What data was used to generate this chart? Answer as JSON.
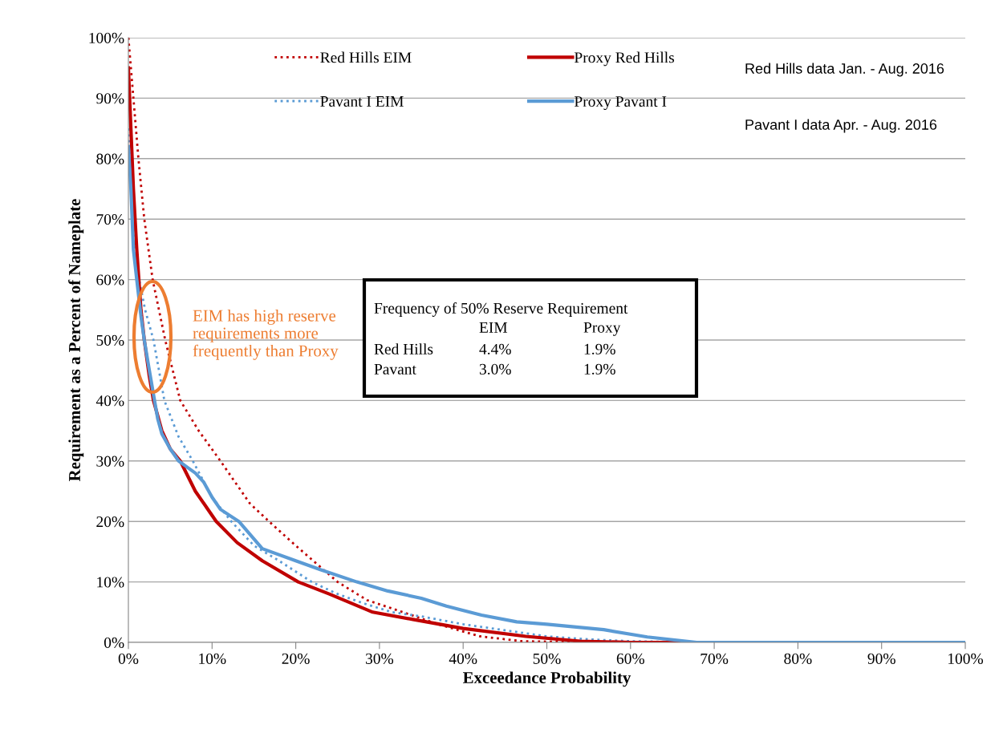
{
  "chart_data": {
    "type": "line",
    "xlabel": "Exceedance Probability",
    "ylabel": "Requirement as a Percent of Nameplate",
    "xlim": [
      0,
      100
    ],
    "ylim": [
      0,
      100
    ],
    "xticks": [
      {
        "value": 0,
        "label": "0%"
      },
      {
        "value": 10,
        "label": "10%"
      },
      {
        "value": 20,
        "label": "20%"
      },
      {
        "value": 30,
        "label": "30%"
      },
      {
        "value": 40,
        "label": "40%"
      },
      {
        "value": 50,
        "label": "50%"
      },
      {
        "value": 60,
        "label": "60%"
      },
      {
        "value": 70,
        "label": "70%"
      },
      {
        "value": 80,
        "label": "80%"
      },
      {
        "value": 90,
        "label": "90%"
      },
      {
        "value": 100,
        "label": "100%"
      }
    ],
    "yticks": [
      {
        "value": 0,
        "label": "0%"
      },
      {
        "value": 10,
        "label": "10%"
      },
      {
        "value": 20,
        "label": "20%"
      },
      {
        "value": 30,
        "label": "30%"
      },
      {
        "value": 40,
        "label": "40%"
      },
      {
        "value": 50,
        "label": "50%"
      },
      {
        "value": 60,
        "label": "60%"
      },
      {
        "value": 70,
        "label": "70%"
      },
      {
        "value": 80,
        "label": "80%"
      },
      {
        "value": 90,
        "label": "90%"
      },
      {
        "value": 100,
        "label": "100%"
      }
    ],
    "grid": "y",
    "legend": "top",
    "marker": "none",
    "series": [
      {
        "name": "Red Hills EIM",
        "color": "#c00000",
        "line_style": "dotted",
        "x": [
          0,
          0.3,
          0.6,
          1.2,
          1.9,
          2.9,
          4.4,
          6.2,
          8.4,
          11,
          12.5,
          14.5,
          16.8,
          20,
          25,
          28.5,
          32.8,
          37,
          42,
          47,
          55,
          100
        ],
        "values": [
          100,
          95,
          90,
          80,
          70,
          60,
          50,
          40,
          35,
          30,
          27,
          23,
          20,
          16,
          10,
          7,
          5,
          3,
          1,
          0.2,
          0,
          0
        ]
      },
      {
        "name": "Pavant I EIM",
        "color": "#5b9bd5",
        "line_style": "dotted",
        "x": [
          0,
          0.5,
          1,
          2,
          3,
          4.3,
          6,
          7.7,
          10,
          12.3,
          15,
          18,
          21.9,
          25,
          28,
          31.5,
          35,
          40,
          45,
          50,
          55,
          60,
          68,
          100
        ],
        "values": [
          85,
          70,
          62,
          55,
          50,
          40,
          34,
          30,
          24,
          20,
          16,
          13.5,
          10,
          8,
          6.5,
          5,
          4.3,
          3,
          2,
          1,
          0.5,
          0.2,
          0,
          0
        ]
      },
      {
        "name": "Proxy Red Hills",
        "color": "#c00000",
        "line_style": "solid",
        "x": [
          0,
          0.3,
          0.6,
          1,
          1.5,
          1.9,
          2.5,
          3,
          4,
          5,
          6.2,
          8,
          10.5,
          13,
          16,
          20.3,
          24,
          29.2,
          34,
          40,
          47.5,
          54,
          60,
          100
        ],
        "values": [
          95,
          85,
          75,
          65,
          55,
          50,
          44,
          40,
          35,
          32,
          30,
          25,
          20,
          16.5,
          13.5,
          10,
          8,
          5,
          3.8,
          2.3,
          1,
          0.2,
          0,
          0
        ]
      },
      {
        "name": "Proxy Pavant I",
        "color": "#5b9bd5",
        "line_style": "solid",
        "x": [
          0,
          0.3,
          0.6,
          1,
          1.5,
          1.9,
          2.5,
          3,
          3.5,
          4,
          5,
          6,
          7,
          8,
          9,
          10,
          11,
          13.2,
          16,
          20,
          23,
          27.3,
          31,
          35,
          38,
          42.2,
          46.4,
          50,
          56.8,
          62,
          67.9,
          100
        ],
        "values": [
          82,
          75,
          65,
          60,
          54,
          50,
          45,
          41,
          37,
          34.5,
          32,
          30,
          29,
          28,
          26.5,
          24,
          22,
          20,
          15.5,
          13.5,
          12,
          10,
          8.5,
          7.3,
          6,
          4.5,
          3.4,
          3,
          2.1,
          0.9,
          0,
          0
        ]
      }
    ],
    "annotations": [
      "Red Hills data Jan. - Aug. 2016",
      "Pavant I data Apr. - Aug. 2016",
      "EIM has high reserve requirements more frequently than Proxy",
      "Frequency of 50% Reserve Requirement",
      "EIM",
      "Proxy",
      "Red Hills",
      "4.4%",
      "1.9%",
      "Pavant",
      "3.0%",
      "1.9%"
    ]
  }
}
